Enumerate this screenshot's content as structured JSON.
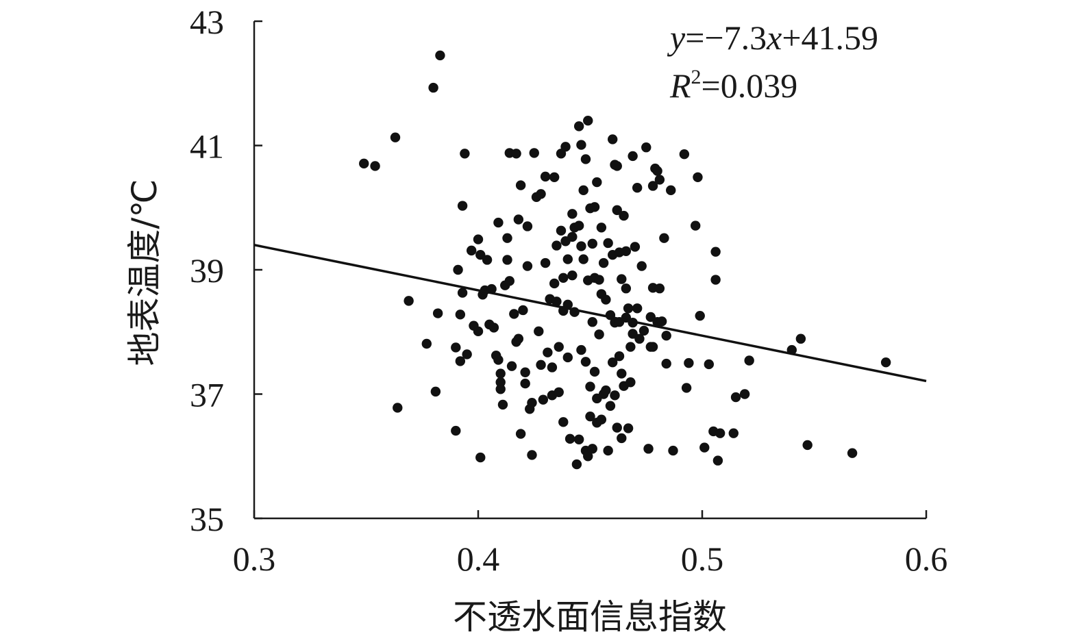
{
  "chart_data": {
    "type": "scatter",
    "title": "",
    "xlabel": "不透水面信息指数",
    "ylabel": "地表温度/℃",
    "xlim": [
      0.3,
      0.6
    ],
    "ylim": [
      35,
      43
    ],
    "x_ticks": [
      "0.3",
      "0.4",
      "0.5",
      "0.6"
    ],
    "y_ticks": [
      "35",
      "37",
      "39",
      "41",
      "43"
    ],
    "grid": false,
    "legend": "none",
    "fit": {
      "slope": -7.3,
      "intercept": 41.59,
      "x_range": [
        0.3,
        0.6
      ],
      "equation_label": {
        "y": "y",
        "eq_text": "=−7.3",
        "x": "x",
        "rest": "+41.59"
      },
      "r2_label": {
        "r": "R",
        "sup": "2",
        "rest": "=0.039"
      }
    },
    "point_color": "#111111",
    "points": [
      [
        0.349,
        40.71
      ],
      [
        0.354,
        40.67
      ],
      [
        0.363,
        41.13
      ],
      [
        0.364,
        36.78
      ],
      [
        0.369,
        38.5
      ],
      [
        0.377,
        37.81
      ],
      [
        0.38,
        41.93
      ],
      [
        0.381,
        37.04
      ],
      [
        0.382,
        38.3
      ],
      [
        0.383,
        42.45
      ],
      [
        0.39,
        37.75
      ],
      [
        0.39,
        36.41
      ],
      [
        0.391,
        39.0
      ],
      [
        0.392,
        38.28
      ],
      [
        0.392,
        37.53
      ],
      [
        0.393,
        40.03
      ],
      [
        0.393,
        38.63
      ],
      [
        0.394,
        40.87
      ],
      [
        0.395,
        37.64
      ],
      [
        0.397,
        39.31
      ],
      [
        0.398,
        38.1
      ],
      [
        0.4,
        39.49
      ],
      [
        0.4,
        38.01
      ],
      [
        0.401,
        39.24
      ],
      [
        0.401,
        35.98
      ],
      [
        0.402,
        38.6
      ],
      [
        0.403,
        38.67
      ],
      [
        0.404,
        39.16
      ],
      [
        0.405,
        38.12
      ],
      [
        0.406,
        38.69
      ],
      [
        0.407,
        38.07
      ],
      [
        0.408,
        37.62
      ],
      [
        0.409,
        39.76
      ],
      [
        0.409,
        37.55
      ],
      [
        0.41,
        37.33
      ],
      [
        0.41,
        37.08
      ],
      [
        0.41,
        37.19
      ],
      [
        0.411,
        36.83
      ],
      [
        0.412,
        38.75
      ],
      [
        0.413,
        39.51
      ],
      [
        0.413,
        39.16
      ],
      [
        0.414,
        38.82
      ],
      [
        0.414,
        40.88
      ],
      [
        0.415,
        37.45
      ],
      [
        0.416,
        38.29
      ],
      [
        0.417,
        37.84
      ],
      [
        0.417,
        40.87
      ],
      [
        0.418,
        39.81
      ],
      [
        0.418,
        37.89
      ],
      [
        0.419,
        40.36
      ],
      [
        0.419,
        36.36
      ],
      [
        0.42,
        38.35
      ],
      [
        0.421,
        37.35
      ],
      [
        0.421,
        37.17
      ],
      [
        0.422,
        39.7
      ],
      [
        0.422,
        39.06
      ],
      [
        0.423,
        36.76
      ],
      [
        0.424,
        36.86
      ],
      [
        0.424,
        36.02
      ],
      [
        0.425,
        40.88
      ],
      [
        0.426,
        40.17
      ],
      [
        0.427,
        38.01
      ],
      [
        0.428,
        40.22
      ],
      [
        0.428,
        37.47
      ],
      [
        0.429,
        36.91
      ],
      [
        0.43,
        40.5
      ],
      [
        0.43,
        39.11
      ],
      [
        0.431,
        37.67
      ],
      [
        0.432,
        38.53
      ],
      [
        0.433,
        37.43
      ],
      [
        0.433,
        36.98
      ],
      [
        0.434,
        40.49
      ],
      [
        0.434,
        38.78
      ],
      [
        0.435,
        39.39
      ],
      [
        0.435,
        38.49
      ],
      [
        0.436,
        37.76
      ],
      [
        0.436,
        37.03
      ],
      [
        0.437,
        40.87
      ],
      [
        0.437,
        39.63
      ],
      [
        0.438,
        38.87
      ],
      [
        0.438,
        38.34
      ],
      [
        0.438,
        36.55
      ],
      [
        0.439,
        40.98
      ],
      [
        0.439,
        39.46
      ],
      [
        0.44,
        39.17
      ],
      [
        0.44,
        38.44
      ],
      [
        0.44,
        37.59
      ],
      [
        0.441,
        36.28
      ],
      [
        0.442,
        39.9
      ],
      [
        0.442,
        39.53
      ],
      [
        0.442,
        38.91
      ],
      [
        0.443,
        39.68
      ],
      [
        0.443,
        38.32
      ],
      [
        0.444,
        35.87
      ],
      [
        0.445,
        41.31
      ],
      [
        0.445,
        39.71
      ],
      [
        0.445,
        36.27
      ],
      [
        0.446,
        41.01
      ],
      [
        0.446,
        39.38
      ],
      [
        0.446,
        37.71
      ],
      [
        0.447,
        40.28
      ],
      [
        0.447,
        39.17
      ],
      [
        0.448,
        40.78
      ],
      [
        0.448,
        37.52
      ],
      [
        0.448,
        36.09
      ],
      [
        0.449,
        41.4
      ],
      [
        0.449,
        38.83
      ],
      [
        0.449,
        36.0
      ],
      [
        0.45,
        39.99
      ],
      [
        0.45,
        37.12
      ],
      [
        0.45,
        36.64
      ],
      [
        0.451,
        39.42
      ],
      [
        0.451,
        38.16
      ],
      [
        0.451,
        36.12
      ],
      [
        0.452,
        40.01
      ],
      [
        0.452,
        38.87
      ],
      [
        0.452,
        37.36
      ],
      [
        0.453,
        40.41
      ],
      [
        0.453,
        36.54
      ],
      [
        0.453,
        36.93
      ],
      [
        0.454,
        38.84
      ],
      [
        0.454,
        37.96
      ],
      [
        0.455,
        39.68
      ],
      [
        0.455,
        38.61
      ],
      [
        0.455,
        36.59
      ],
      [
        0.456,
        39.11
      ],
      [
        0.456,
        37.0
      ],
      [
        0.457,
        38.52
      ],
      [
        0.457,
        37.06
      ],
      [
        0.458,
        39.43
      ],
      [
        0.458,
        36.09
      ],
      [
        0.459,
        38.27
      ],
      [
        0.459,
        36.81
      ],
      [
        0.46,
        41.1
      ],
      [
        0.46,
        39.24
      ],
      [
        0.46,
        37.51
      ],
      [
        0.461,
        40.69
      ],
      [
        0.461,
        38.15
      ],
      [
        0.461,
        36.98
      ],
      [
        0.462,
        40.67
      ],
      [
        0.462,
        39.96
      ],
      [
        0.462,
        36.46
      ],
      [
        0.463,
        39.28
      ],
      [
        0.463,
        38.16
      ],
      [
        0.463,
        37.61
      ],
      [
        0.464,
        38.85
      ],
      [
        0.464,
        37.33
      ],
      [
        0.464,
        36.29
      ],
      [
        0.465,
        39.87
      ],
      [
        0.465,
        37.13
      ],
      [
        0.466,
        39.3
      ],
      [
        0.466,
        38.7
      ],
      [
        0.466,
        38.23
      ],
      [
        0.467,
        38.38
      ],
      [
        0.467,
        36.45
      ],
      [
        0.468,
        37.19
      ],
      [
        0.468,
        37.76
      ],
      [
        0.469,
        40.83
      ],
      [
        0.469,
        38.15
      ],
      [
        0.469,
        37.97
      ],
      [
        0.47,
        39.37
      ],
      [
        0.471,
        40.32
      ],
      [
        0.471,
        38.38
      ],
      [
        0.472,
        37.89
      ],
      [
        0.473,
        39.06
      ],
      [
        0.474,
        38.02
      ],
      [
        0.475,
        40.97
      ],
      [
        0.476,
        36.12
      ],
      [
        0.477,
        38.24
      ],
      [
        0.477,
        37.76
      ],
      [
        0.478,
        38.71
      ],
      [
        0.478,
        40.35
      ],
      [
        0.478,
        37.76
      ],
      [
        0.479,
        40.63
      ],
      [
        0.48,
        40.59
      ],
      [
        0.48,
        38.16
      ],
      [
        0.481,
        40.45
      ],
      [
        0.481,
        38.7
      ],
      [
        0.482,
        38.17
      ],
      [
        0.483,
        39.51
      ],
      [
        0.484,
        37.49
      ],
      [
        0.484,
        37.94
      ],
      [
        0.486,
        40.28
      ],
      [
        0.487,
        36.09
      ],
      [
        0.492,
        40.86
      ],
      [
        0.493,
        37.1
      ],
      [
        0.494,
        37.5
      ],
      [
        0.497,
        39.71
      ],
      [
        0.498,
        40.49
      ],
      [
        0.499,
        38.26
      ],
      [
        0.501,
        36.14
      ],
      [
        0.503,
        37.48
      ],
      [
        0.505,
        36.4
      ],
      [
        0.506,
        38.84
      ],
      [
        0.506,
        39.29
      ],
      [
        0.507,
        35.93
      ],
      [
        0.508,
        36.37
      ],
      [
        0.514,
        36.37
      ],
      [
        0.515,
        36.95
      ],
      [
        0.519,
        37.0
      ],
      [
        0.521,
        37.54
      ],
      [
        0.54,
        37.71
      ],
      [
        0.544,
        37.89
      ],
      [
        0.547,
        36.18
      ],
      [
        0.567,
        36.05
      ],
      [
        0.582,
        37.51
      ]
    ]
  }
}
